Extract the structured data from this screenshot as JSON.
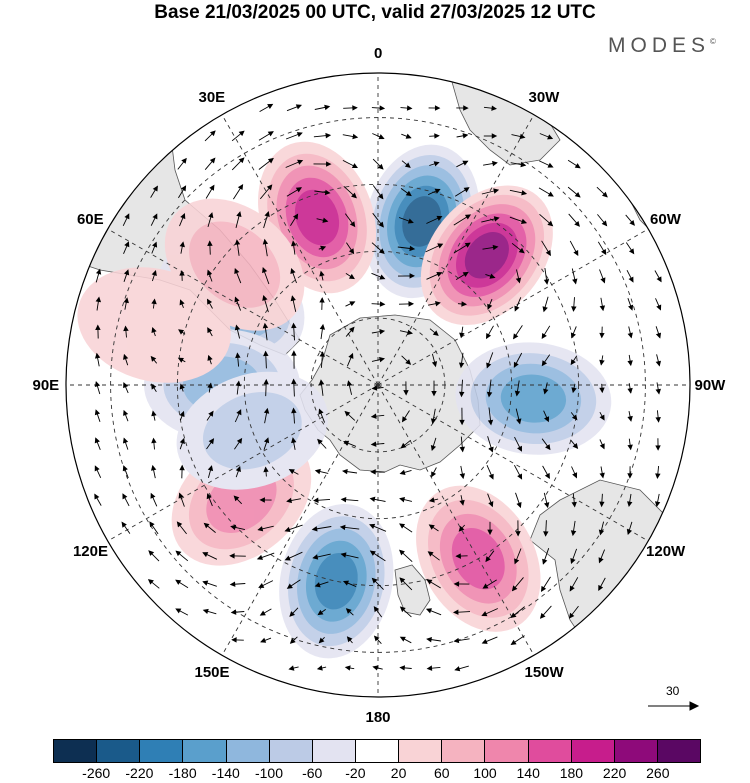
{
  "title": "Base 21/03/2025 00 UTC, valid 27/03/2025 12 UTC",
  "brand": "MODES",
  "brand_mark": "©",
  "longitude_labels": [
    {
      "text": "0",
      "lon": 0
    },
    {
      "text": "30E",
      "lon": 30
    },
    {
      "text": "60E",
      "lon": 60
    },
    {
      "text": "90E",
      "lon": 90
    },
    {
      "text": "120E",
      "lon": 120
    },
    {
      "text": "150E",
      "lon": 150
    },
    {
      "text": "180",
      "lon": 180
    },
    {
      "text": "150W",
      "lon": -150
    },
    {
      "text": "120W",
      "lon": -120
    },
    {
      "text": "90W",
      "lon": -90
    },
    {
      "text": "60W",
      "lon": -60
    },
    {
      "text": "30W",
      "lon": -30
    }
  ],
  "vector_scale": "30",
  "colorbar": {
    "ticks": [
      "-260",
      "-220",
      "-180",
      "-140",
      "-100",
      "-60",
      "-20",
      "20",
      "60",
      "100",
      "140",
      "180",
      "220",
      "260"
    ],
    "colors": [
      "#0d2f52",
      "#1a5a8a",
      "#2f7fb5",
      "#5a9fcc",
      "#8fb7dd",
      "#bccbe6",
      "#e3e3f1",
      "#ffffff",
      "#f9d3d6",
      "#f5b3c0",
      "#ef86ac",
      "#e04c9d",
      "#c71d8c",
      "#8e0a7a",
      "#5a0763"
    ]
  },
  "anomalies": [
    {
      "lat": -52,
      "lon": -15,
      "value": -220
    },
    {
      "lat": -50,
      "lon": 20,
      "value": 200
    },
    {
      "lat": -52,
      "lon": -40,
      "value": 220
    },
    {
      "lat": -52,
      "lon": 60,
      "value": -140
    },
    {
      "lat": -55,
      "lon": 90,
      "value": -100
    },
    {
      "lat": -55,
      "lon": -95,
      "value": -160
    },
    {
      "lat": -50,
      "lon": 130,
      "value": 120
    },
    {
      "lat": -45,
      "lon": -150,
      "value": 160
    },
    {
      "lat": -45,
      "lon": 168,
      "value": -200
    },
    {
      "lat": -48,
      "lon": 50,
      "value": 60
    },
    {
      "lat": -60,
      "lon": 110,
      "value": -60
    },
    {
      "lat": -38,
      "lon": 75,
      "value": 50
    }
  ]
}
